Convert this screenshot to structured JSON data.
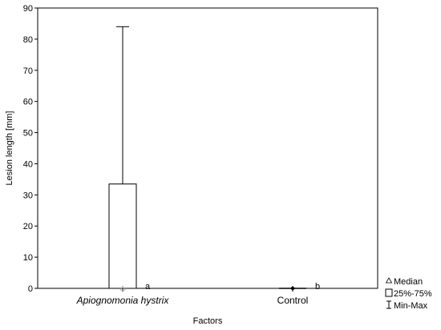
{
  "chart_data": {
    "type": "box",
    "xlabel": "Factors",
    "ylabel": "Lesion length [mm]",
    "ylim": [
      0,
      90
    ],
    "yticks": [
      0,
      10,
      20,
      30,
      40,
      50,
      60,
      70,
      80,
      90
    ],
    "grid": false,
    "legend_position": "bottom-right-outside",
    "categories": [
      {
        "label": "Apiognomonia hystrix",
        "italic": true,
        "min": 0,
        "q1": 0,
        "median": 0,
        "q3": 33.5,
        "max": 84,
        "annotation": "a"
      },
      {
        "label": "Control",
        "italic": false,
        "min": 0,
        "q1": 0,
        "median": 0,
        "q3": 0,
        "max": 0,
        "annotation": "b"
      }
    ],
    "legend": [
      {
        "symbol": "median",
        "label": "Median"
      },
      {
        "symbol": "box",
        "label": "25%-75%"
      },
      {
        "symbol": "whisker",
        "label": "Min-Max"
      }
    ]
  }
}
